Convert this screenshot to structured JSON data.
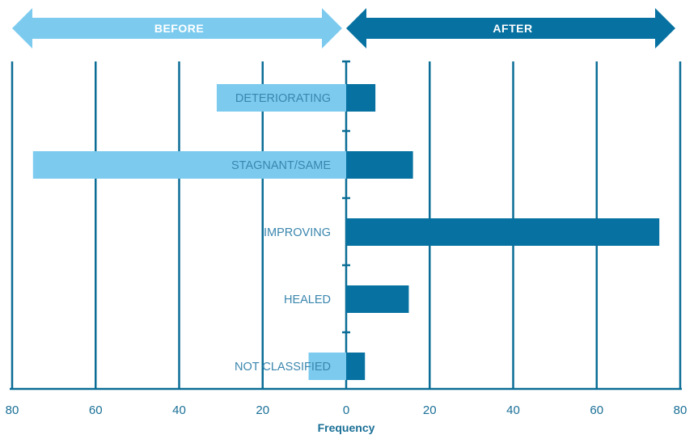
{
  "chart_data": {
    "type": "bar",
    "orientation": "horizontal-diverging",
    "header_labels": {
      "before": "BEFORE",
      "after": "AFTER"
    },
    "categories": [
      "DETERIORATING",
      "STAGNANT/SAME",
      "IMPROVING",
      "HEALED",
      "NOT CLASSIFIED"
    ],
    "series": [
      {
        "name": "BEFORE",
        "values": [
          31,
          75,
          0,
          0,
          9
        ]
      },
      {
        "name": "AFTER",
        "values": [
          7,
          16,
          75,
          15,
          4.5
        ]
      }
    ],
    "xlabel": "Frequency",
    "xticks": [
      "80",
      "60",
      "40",
      "20",
      "0",
      "20",
      "40",
      "60",
      "80"
    ],
    "xlim": [
      -80,
      80
    ],
    "grid": "vertical",
    "colors": {
      "before": "#7ccbef",
      "after": "#0772a1",
      "axis": "#0b6d96",
      "label": "#3a86ad"
    }
  }
}
